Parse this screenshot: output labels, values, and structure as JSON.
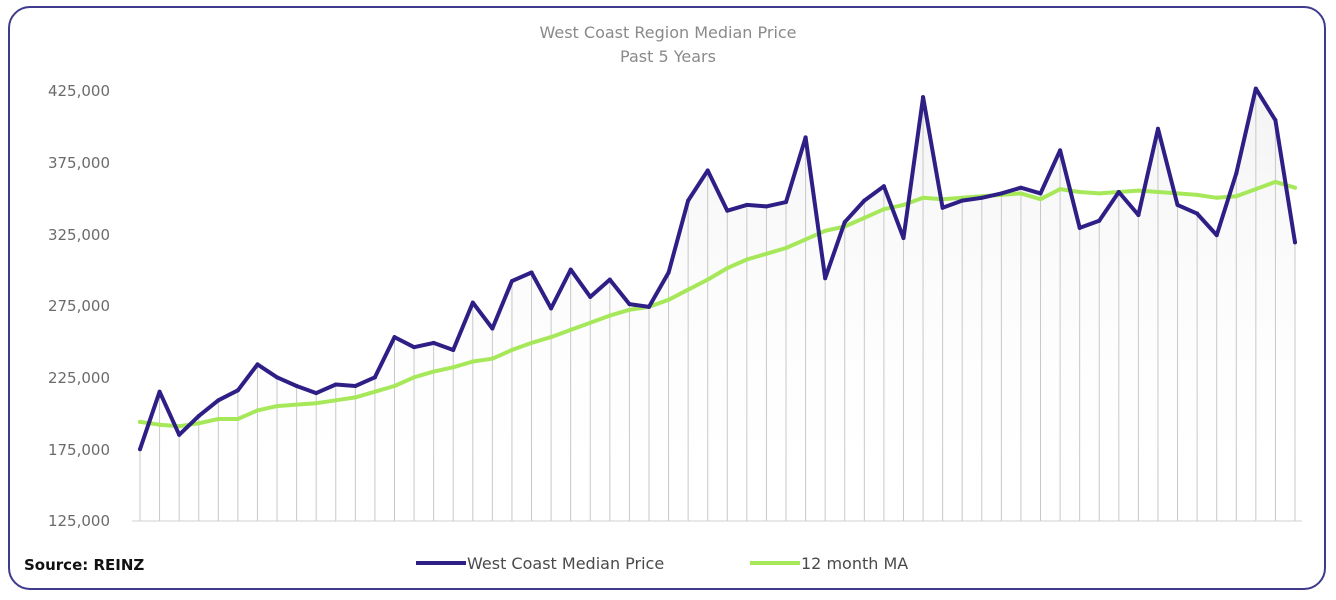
{
  "chart_data": {
    "type": "line",
    "title": "West Coast Region Median Price",
    "subtitle": "Past 5 Years",
    "source": "Source: REINZ",
    "ylim": [
      125000,
      425000
    ],
    "y_ticks": [
      "425,000",
      "375,000",
      "325,000",
      "275,000",
      "225,000",
      "175,000",
      "125,000"
    ],
    "legend_position": "bottom",
    "colors": {
      "median": "#2e1f86",
      "ma": "#a6e85a",
      "drop": "#c8c8c8"
    },
    "series": [
      {
        "name": "West Coast Median Price",
        "values": [
          175000,
          215000,
          185000,
          198000,
          209000,
          216000,
          234000,
          225000,
          219000,
          214000,
          220000,
          219000,
          225000,
          253000,
          246000,
          249000,
          244000,
          277000,
          259000,
          292000,
          298000,
          273000,
          300000,
          281000,
          293000,
          276000,
          274000,
          298000,
          348000,
          369000,
          341000,
          345000,
          344000,
          347000,
          392000,
          294000,
          333000,
          348000,
          358000,
          322000,
          420000,
          343000,
          348000,
          350000,
          353000,
          357000,
          353000,
          383000,
          329000,
          334000,
          354000,
          338000,
          398000,
          345000,
          339000,
          324000,
          367000,
          426000,
          404000,
          319000
        ]
      },
      {
        "name": "12 month MA",
        "values": [
          194000,
          192000,
          191000,
          193000,
          196000,
          196000,
          202000,
          205000,
          206000,
          207000,
          209000,
          211000,
          215000,
          219000,
          225000,
          229000,
          232000,
          236000,
          238000,
          244000,
          249000,
          253000,
          258000,
          263000,
          268000,
          272000,
          274000,
          279000,
          286000,
          293000,
          301000,
          307000,
          311000,
          315000,
          321000,
          327000,
          330000,
          336000,
          342000,
          345000,
          350000,
          349000,
          350000,
          351000,
          352000,
          353000,
          349000,
          356000,
          354000,
          353000,
          354000,
          355000,
          354000,
          353000,
          352000,
          350000,
          351000,
          356000,
          361000,
          357000
        ]
      }
    ]
  }
}
